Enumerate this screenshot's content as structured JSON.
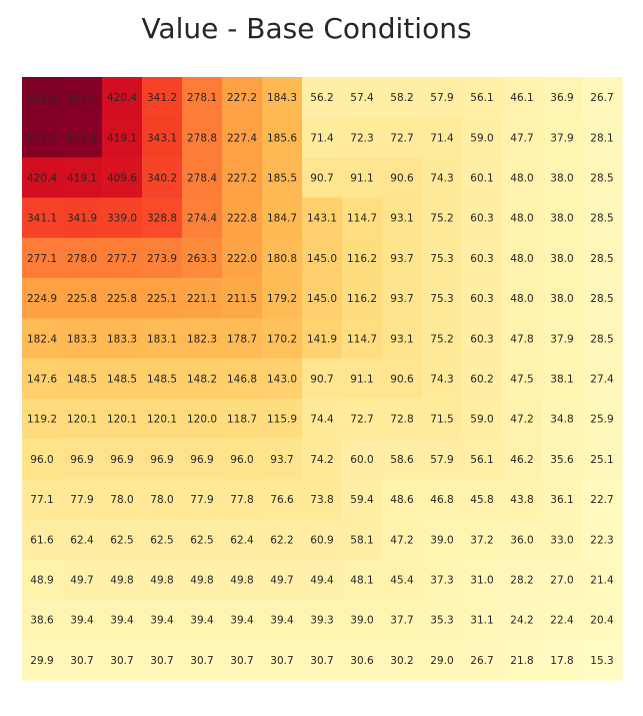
{
  "chart_data": {
    "type": "heatmap",
    "title": "Value - Base Conditions",
    "xlabel": "",
    "ylabel": "",
    "colormap": "YlOrRd",
    "color_range": [
      0,
      521.8
    ],
    "rows": 15,
    "cols": 15,
    "values": [
      [
        "521.8",
        "517.7",
        "420.4",
        "341.2",
        "278.1",
        "227.2",
        "184.3",
        "56.2",
        "57.4",
        "58.2",
        "57.9",
        "56.1",
        "46.1",
        "36.9",
        "26.7"
      ],
      [
        "517.7",
        "511.9",
        "419.1",
        "343.1",
        "278.8",
        "227.4",
        "185.6",
        "71.4",
        "72.3",
        "72.7",
        "71.4",
        "59.0",
        "47.7",
        "37.9",
        "28.1"
      ],
      [
        "420.4",
        "419.1",
        "409.6",
        "340.2",
        "278.4",
        "227.2",
        "185.5",
        "90.7",
        "91.1",
        "90.6",
        "74.3",
        "60.1",
        "48.0",
        "38.0",
        "28.5"
      ],
      [
        "341.1",
        "341.9",
        "339.0",
        "328.8",
        "274.4",
        "222.8",
        "184.7",
        "143.1",
        "114.7",
        "93.1",
        "75.2",
        "60.3",
        "48.0",
        "38.0",
        "28.5"
      ],
      [
        "277.1",
        "278.0",
        "277.7",
        "273.9",
        "263.3",
        "222.0",
        "180.8",
        "145.0",
        "116.2",
        "93.7",
        "75.3",
        "60.3",
        "48.0",
        "38.0",
        "28.5"
      ],
      [
        "224.9",
        "225.8",
        "225.8",
        "225.1",
        "221.1",
        "211.5",
        "179.2",
        "145.0",
        "116.2",
        "93.7",
        "75.3",
        "60.3",
        "48.0",
        "38.0",
        "28.5"
      ],
      [
        "182.4",
        "183.3",
        "183.3",
        "183.1",
        "182.3",
        "178.7",
        "170.2",
        "141.9",
        "114.7",
        "93.1",
        "75.2",
        "60.3",
        "47.8",
        "37.9",
        "28.5"
      ],
      [
        "147.6",
        "148.5",
        "148.5",
        "148.5",
        "148.2",
        "146.8",
        "143.0",
        "90.7",
        "91.1",
        "90.6",
        "74.3",
        "60.2",
        "47.5",
        "38.1",
        "27.4"
      ],
      [
        "119.2",
        "120.1",
        "120.1",
        "120.1",
        "120.0",
        "118.7",
        "115.9",
        "74.4",
        "72.7",
        "72.8",
        "71.5",
        "59.0",
        "47.2",
        "34.8",
        "25.9"
      ],
      [
        "96.0",
        "96.9",
        "96.9",
        "96.9",
        "96.9",
        "96.0",
        "93.7",
        "74.2",
        "60.0",
        "58.6",
        "57.9",
        "56.1",
        "46.2",
        "35.6",
        "25.1"
      ],
      [
        "77.1",
        "77.9",
        "78.0",
        "78.0",
        "77.9",
        "77.8",
        "76.6",
        "73.8",
        "59.4",
        "48.6",
        "46.8",
        "45.8",
        "43.8",
        "36.1",
        "22.7"
      ],
      [
        "61.6",
        "62.4",
        "62.5",
        "62.5",
        "62.5",
        "62.4",
        "62.2",
        "60.9",
        "58.1",
        "47.2",
        "39.0",
        "37.2",
        "36.0",
        "33.0",
        "22.3"
      ],
      [
        "48.9",
        "49.7",
        "49.8",
        "49.8",
        "49.8",
        "49.8",
        "49.7",
        "49.4",
        "48.1",
        "45.4",
        "37.3",
        "31.0",
        "28.2",
        "27.0",
        "21.4"
      ],
      [
        "38.6",
        "39.4",
        "39.4",
        "39.4",
        "39.4",
        "39.4",
        "39.4",
        "39.3",
        "39.0",
        "37.7",
        "35.3",
        "31.1",
        "24.2",
        "22.4",
        "20.4"
      ],
      [
        "29.9",
        "30.7",
        "30.7",
        "30.7",
        "30.7",
        "30.7",
        "30.7",
        "30.7",
        "30.6",
        "30.2",
        "29.0",
        "26.7",
        "21.8",
        "17.8",
        "15.3"
      ]
    ]
  }
}
